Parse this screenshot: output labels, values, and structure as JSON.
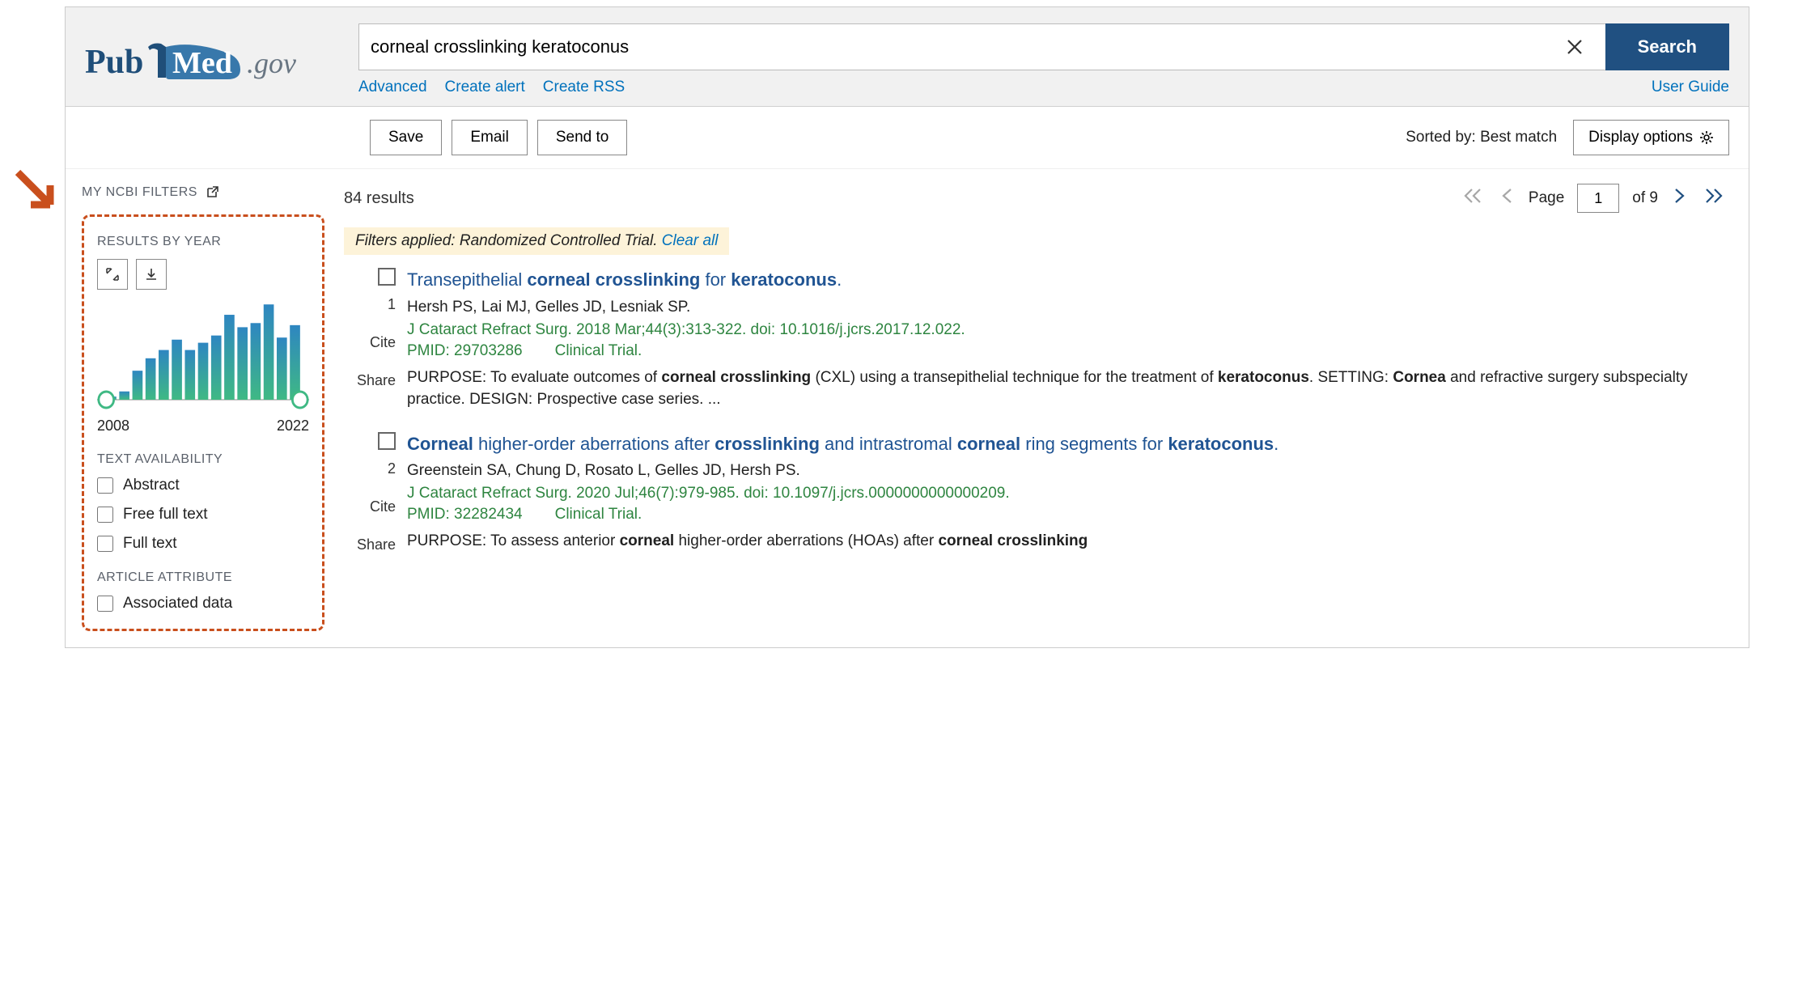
{
  "logo": {
    "pub": "Pub",
    "med": "Med",
    "gov": ".gov",
    "pub_color": "#1f4e79",
    "med_color": "#ffffff",
    "med_bg": "#3878ab",
    "gov_color": "#687582"
  },
  "search": {
    "value": "corneal crosslinking keratoconus",
    "button": "Search",
    "links": {
      "advanced": "Advanced",
      "create_alert": "Create alert",
      "create_rss": "Create RSS",
      "user_guide": "User Guide"
    }
  },
  "toolbar": {
    "save": "Save",
    "email": "Email",
    "sendto": "Send to",
    "sorted_label": "Sorted by:",
    "sorted_value": "Best match",
    "display": "Display options"
  },
  "sidebar": {
    "my_filters": "MY NCBI FILTERS",
    "results_by_year": "RESULTS BY YEAR",
    "chart": {
      "type": "bar",
      "year_start": 2008,
      "year_end": 2022,
      "values": [
        3,
        8,
        28,
        40,
        48,
        58,
        48,
        55,
        62,
        82,
        70,
        74,
        92,
        60,
        72
      ],
      "ymax": 100,
      "gradient_top": "#2e86c1",
      "gradient_bottom": "#3fb984",
      "axis_color": "#b0b0b0",
      "handle_stroke": "#3fb984",
      "handle_fill": "#ffffff",
      "handle_r": 10
    },
    "text_availability": "TEXT AVAILABILITY",
    "ta_opts": [
      "Abstract",
      "Free full text",
      "Full text"
    ],
    "article_attribute": "ARTICLE ATTRIBUTE",
    "aa_opts": [
      "Associated data"
    ]
  },
  "results": {
    "count_label": "84 results",
    "page_label": "Page",
    "page_value": "1",
    "page_of": "of 9",
    "filters_applied_prefix": "Filters applied: ",
    "filters_applied_value": "Randomized Controlled Trial.",
    "clear_all": "Clear all",
    "cite_label": "Cite",
    "share_label": "Share",
    "items": [
      {
        "num": "1",
        "title_html": "Transepithelial <b>corneal crosslinking</b> for <b>keratoconus</b>.",
        "authors": "Hersh PS, Lai MJ, Gelles JD, Lesniak SP.",
        "citation": "J Cataract Refract Surg. 2018 Mar;44(3):313-322. doi: 10.1016/j.jcrs.2017.12.022.",
        "pmid": "PMID: 29703286",
        "type": "Clinical Trial.",
        "snippet_html": "PURPOSE: To evaluate outcomes of <b>corneal crosslinking</b> (CXL) using a transepithelial technique for the treatment of <b>keratoconus</b>. SETTING: <b>Cornea</b> and refractive surgery subspecialty practice. DESIGN: Prospective case series. ..."
      },
      {
        "num": "2",
        "title_html": "<b>Corneal</b> higher-order aberrations after <b>crosslinking</b> and intrastromal <b>corneal</b> ring segments for <b>keratoconus</b>.",
        "authors": "Greenstein SA, Chung D, Rosato L, Gelles JD, Hersh PS.",
        "citation": "J Cataract Refract Surg. 2020 Jul;46(7):979-985. doi: 10.1097/j.jcrs.0000000000000209.",
        "pmid": "PMID: 32282434",
        "type": "Clinical Trial.",
        "snippet_html": "PURPOSE: To assess anterior <b>corneal</b> higher-order aberrations (HOAs) after <b>corneal crosslinking</b>"
      }
    ]
  }
}
